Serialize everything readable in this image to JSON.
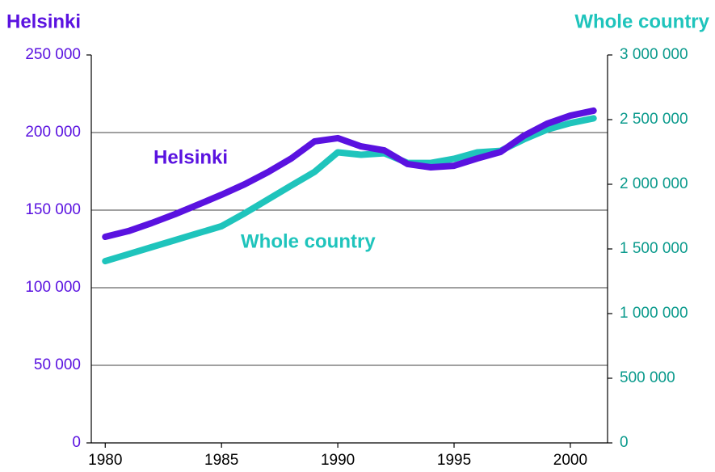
{
  "chart_data": {
    "type": "line",
    "y_title": "Helsinki",
    "y2_title": "Whole country",
    "annotations": [
      "Helsinki",
      "Whole country"
    ],
    "x": [
      1980,
      1981,
      1982,
      1983,
      1984,
      1985,
      1986,
      1987,
      1988,
      1989,
      1990,
      1991,
      1992,
      1993,
      1994,
      1995,
      1996,
      1997,
      1998,
      1999,
      2000,
      2001
    ],
    "xlim": [
      1979.4,
      2001.6
    ],
    "xticks": [
      1980,
      1985,
      1990,
      1995,
      2000
    ],
    "ylim": [
      0,
      250000
    ],
    "yticks": [
      {
        "value": 0,
        "label": "0"
      },
      {
        "value": 50000,
        "label": "50 000"
      },
      {
        "value": 100000,
        "label": "100 000"
      },
      {
        "value": 150000,
        "label": "150 000"
      },
      {
        "value": 200000,
        "label": "200 000"
      },
      {
        "value": 250000,
        "label": "250 000"
      }
    ],
    "y2lim": [
      0,
      3000000
    ],
    "y2ticks": [
      {
        "value": 0,
        "label": "0"
      },
      {
        "value": 500000,
        "label": "500 000"
      },
      {
        "value": 1000000,
        "label": "1 000 000"
      },
      {
        "value": 1500000,
        "label": "1 500 000"
      },
      {
        "value": 2000000,
        "label": "2 000 000"
      },
      {
        "value": 2500000,
        "label": "2 500 000"
      },
      {
        "value": 3000000,
        "label": "3 000 000"
      }
    ],
    "grid": true,
    "y_color": "#5a12e0",
    "y2_color": "#0a9a8c",
    "series": [
      {
        "name": "Helsinki",
        "color": "#5a12e0",
        "axis": "y",
        "values": [
          132800,
          136500,
          141700,
          147400,
          153600,
          159900,
          166700,
          174500,
          183300,
          194300,
          196400,
          191100,
          188500,
          179700,
          177600,
          178600,
          183300,
          187500,
          197900,
          205700,
          210900,
          214100
        ]
      },
      {
        "name": "Whole country",
        "color": "#1fc4bc",
        "axis": "y2",
        "values": [
          1405800,
          1460000,
          1514000,
          1568000,
          1622000,
          1675700,
          1776000,
          1883000,
          1990000,
          2096000,
          2247000,
          2228000,
          2240000,
          2165000,
          2165000,
          2197000,
          2247000,
          2259000,
          2347000,
          2423000,
          2473000,
          2510000
        ]
      }
    ]
  }
}
